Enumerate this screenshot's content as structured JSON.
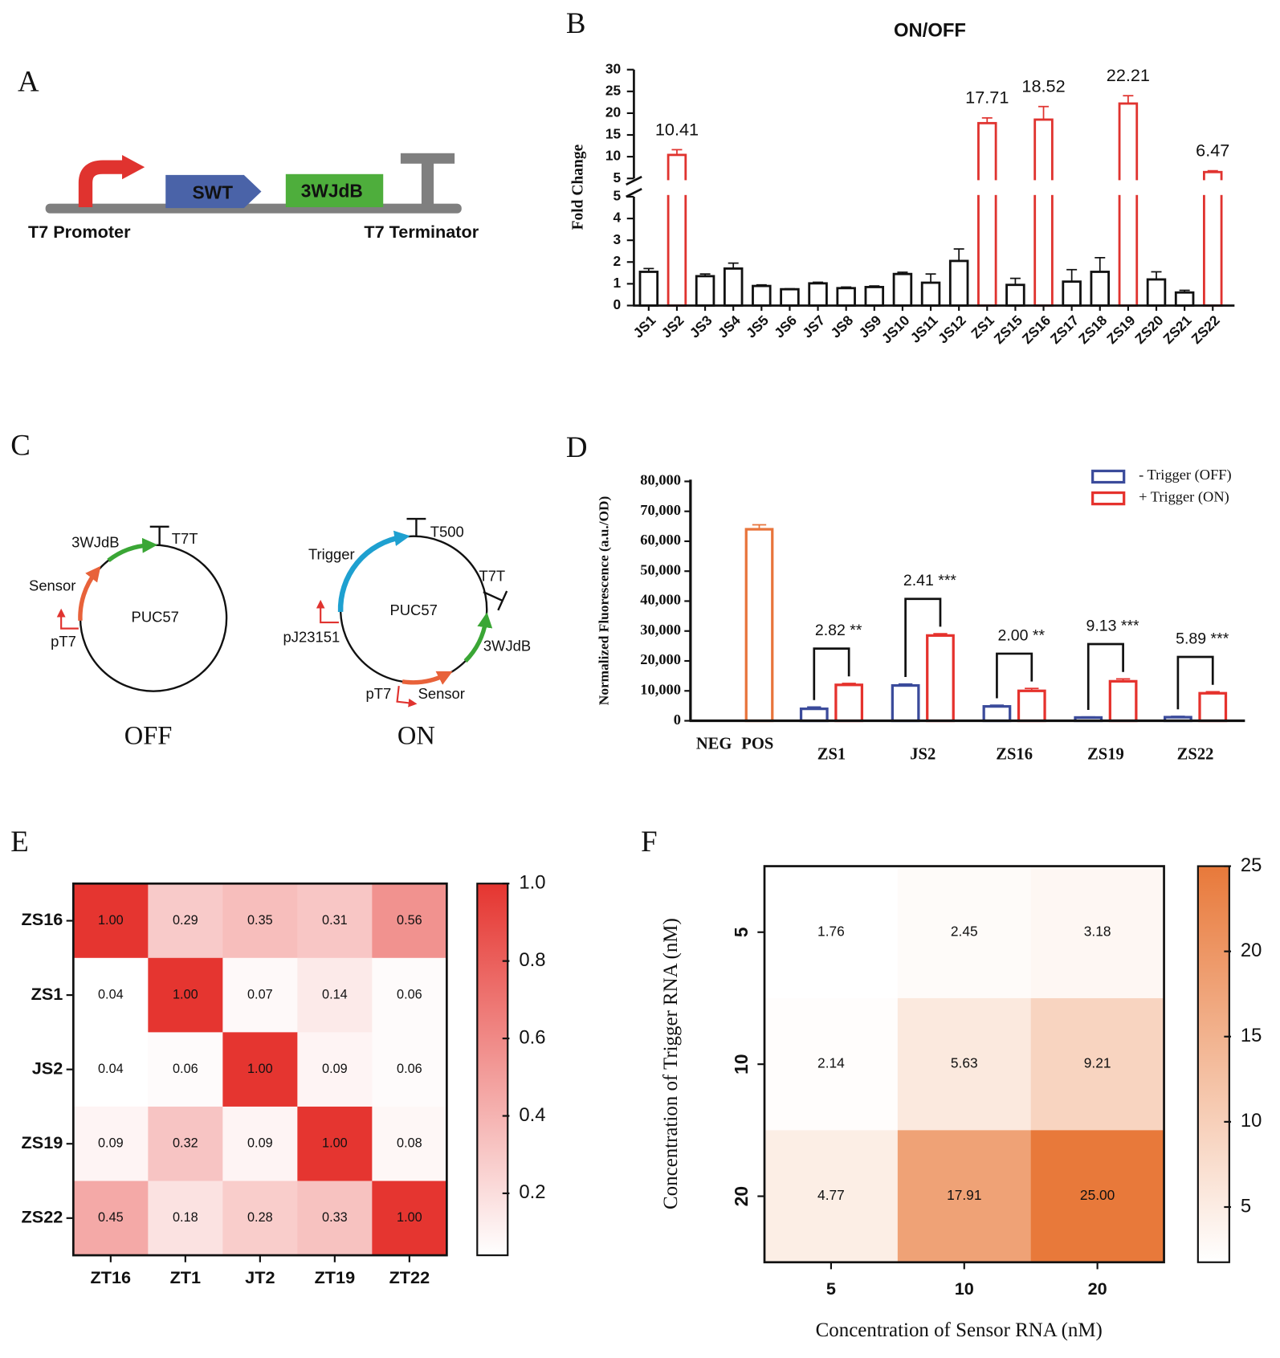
{
  "diagrams": {
    "A": {
      "label": "A",
      "parts": [
        "SWT",
        "3WJdB"
      ],
      "promoter": "T7 Promoter",
      "terminator": "T7 Terminator"
    },
    "C": {
      "label": "C",
      "off": {
        "backbone": "PUC57",
        "features": [
          "3WJdB",
          "T7T",
          "Sensor",
          "pT7"
        ],
        "state": "OFF"
      },
      "on": {
        "backbone": "PUC57",
        "features": [
          "Trigger",
          "T500",
          "T7T",
          "pJ23151",
          "3WJdB",
          "pT7",
          "Sensor"
        ],
        "state": "ON"
      }
    }
  },
  "chart_data": [
    {
      "type": "bar",
      "panel": "B",
      "title": "ON/OFF",
      "y_label": "Fold Change",
      "categories": [
        "JS1",
        "JS2",
        "JS3",
        "JS4",
        "JS5",
        "JS6",
        "JS7",
        "JS8",
        "JS9",
        "JS10",
        "JS11",
        "JS12",
        "ZS1",
        "ZS15",
        "ZS16",
        "ZS17",
        "ZS18",
        "ZS19",
        "ZS20",
        "ZS21",
        "ZS22"
      ],
      "values": [
        1.55,
        10.41,
        1.35,
        1.7,
        0.9,
        0.75,
        1.02,
        0.8,
        0.85,
        1.45,
        1.05,
        2.05,
        17.71,
        0.95,
        18.52,
        1.1,
        1.55,
        22.21,
        1.2,
        0.6,
        6.47
      ],
      "errors": [
        0.15,
        1.2,
        0.1,
        0.25,
        0.05,
        0.02,
        0.05,
        0.05,
        0.05,
        0.08,
        0.4,
        0.55,
        1.2,
        0.3,
        3.0,
        0.55,
        0.65,
        1.8,
        0.35,
        0.1,
        0.3
      ],
      "colors": [
        "#111111",
        "#e0332f",
        "#111111",
        "#111111",
        "#111111",
        "#111111",
        "#111111",
        "#111111",
        "#111111",
        "#111111",
        "#111111",
        "#111111",
        "#e0332f",
        "#111111",
        "#e0332f",
        "#111111",
        "#111111",
        "#e0332f",
        "#111111",
        "#111111",
        "#e0332f"
      ],
      "value_labels": [
        null,
        "10.41",
        null,
        null,
        null,
        null,
        null,
        null,
        null,
        null,
        null,
        null,
        "17.71",
        null,
        "18.52",
        null,
        null,
        "22.21",
        null,
        null,
        "6.47"
      ],
      "ylim": [
        0,
        5
      ],
      "yticks": [
        0,
        1,
        2,
        3,
        4,
        5
      ],
      "ylim_upper": [
        5,
        30
      ],
      "yticks_upper": [
        5,
        10,
        15,
        20,
        25,
        30
      ]
    },
    {
      "type": "grouped_bar",
      "panel": "D",
      "y_label": "Normalized Fluorescence (a.u./OD)",
      "categories": [
        "NEG",
        "POS",
        "ZS1",
        "JS2",
        "ZS16",
        "ZS19",
        "ZS22"
      ],
      "series": [
        {
          "name": "- Trigger (OFF)",
          "color": "#3b4b9b",
          "values": [
            null,
            null,
            4000,
            11800,
            4800,
            1100,
            1200
          ],
          "errors": [
            null,
            null,
            600,
            500,
            400,
            200,
            300
          ]
        },
        {
          "name": "+ Trigger (ON)",
          "color": "#e5322d",
          "colors": [
            "#e5322d",
            "#e8743b",
            "#e5322d",
            "#e5322d",
            "#e5322d",
            "#e5322d",
            "#e5322d"
          ],
          "values": [
            0,
            64000,
            12000,
            28500,
            10000,
            13200,
            9200
          ],
          "errors": [
            null,
            1500,
            500,
            600,
            800,
            800,
            500
          ]
        }
      ],
      "annotations": [
        null,
        null,
        "2.82 **",
        "2.41 ***",
        "2.00 **",
        "9.13 ***",
        "5.89 ***"
      ],
      "ylim": [
        0,
        80000
      ],
      "yticks": [
        0,
        {
          "value": 10000,
          "label": "10,000"
        },
        {
          "value": 20000,
          "label": "20,000"
        },
        {
          "value": 30000,
          "label": "30,000"
        },
        {
          "value": 40000,
          "label": "40,000"
        },
        {
          "value": 50000,
          "label": "50,000"
        },
        {
          "value": 60000,
          "label": "60,000"
        },
        {
          "value": 70000,
          "label": "70,000"
        },
        {
          "value": 80000,
          "label": "80,000"
        }
      ],
      "legend": "upper right"
    },
    {
      "type": "heatmap",
      "panel": "E",
      "x_categories": [
        "ZT16",
        "ZT1",
        "JT2",
        "ZT19",
        "ZT22"
      ],
      "y_categories": [
        "ZS16",
        "ZS1",
        "JS2",
        "ZS19",
        "ZS22"
      ],
      "values": [
        [
          1,
          0.29,
          0.35,
          0.31,
          0.56
        ],
        [
          0.04,
          1,
          0.07,
          0.14,
          0.06
        ],
        [
          0.04,
          0.06,
          1,
          0.09,
          0.06
        ],
        [
          0.09,
          0.32,
          0.09,
          1,
          0.08
        ],
        [
          0.45,
          0.18,
          0.28,
          0.33,
          1
        ]
      ],
      "value_labels": [
        [
          "1.00",
          "0.29",
          "0.35",
          "0.31",
          "0.56"
        ],
        [
          "0.04",
          "1.00",
          "0.07",
          "0.14",
          "0.06"
        ],
        [
          "0.04",
          "0.06",
          "1.00",
          "0.09",
          "0.06"
        ],
        [
          "0.09",
          "0.32",
          "0.09",
          "1.00",
          "0.08"
        ],
        [
          "0.45",
          "0.18",
          "0.28",
          "0.33",
          "1.00"
        ]
      ],
      "zlim": [
        0.04,
        1
      ],
      "zticks": [
        0.2,
        0.4,
        0.6,
        0.8,
        {
          "value": 1,
          "label": "1.0"
        }
      ],
      "colors": [
        "#ffffff",
        "#e53530"
      ]
    },
    {
      "type": "heatmap",
      "panel": "F",
      "x_label": "Concentration of Sensor RNA (nM)",
      "y_label": "Concentration of Trigger RNA (nM)",
      "x_categories": [
        "5",
        "10",
        "20"
      ],
      "y_categories": [
        "5",
        "10",
        "20"
      ],
      "values": [
        [
          1.76,
          2.45,
          3.18
        ],
        [
          2.14,
          5.63,
          9.21
        ],
        [
          4.77,
          17.91,
          25
        ]
      ],
      "value_labels": [
        [
          "1.76",
          "2.45",
          "3.18"
        ],
        [
          "2.14",
          "5.63",
          "9.21"
        ],
        [
          "4.77",
          "17.91",
          "25.00"
        ]
      ],
      "zlim": [
        1.76,
        25
      ],
      "zticks": [
        5,
        10,
        15,
        20,
        25
      ],
      "colors": [
        "#ffffff",
        "#e8793a"
      ]
    }
  ]
}
